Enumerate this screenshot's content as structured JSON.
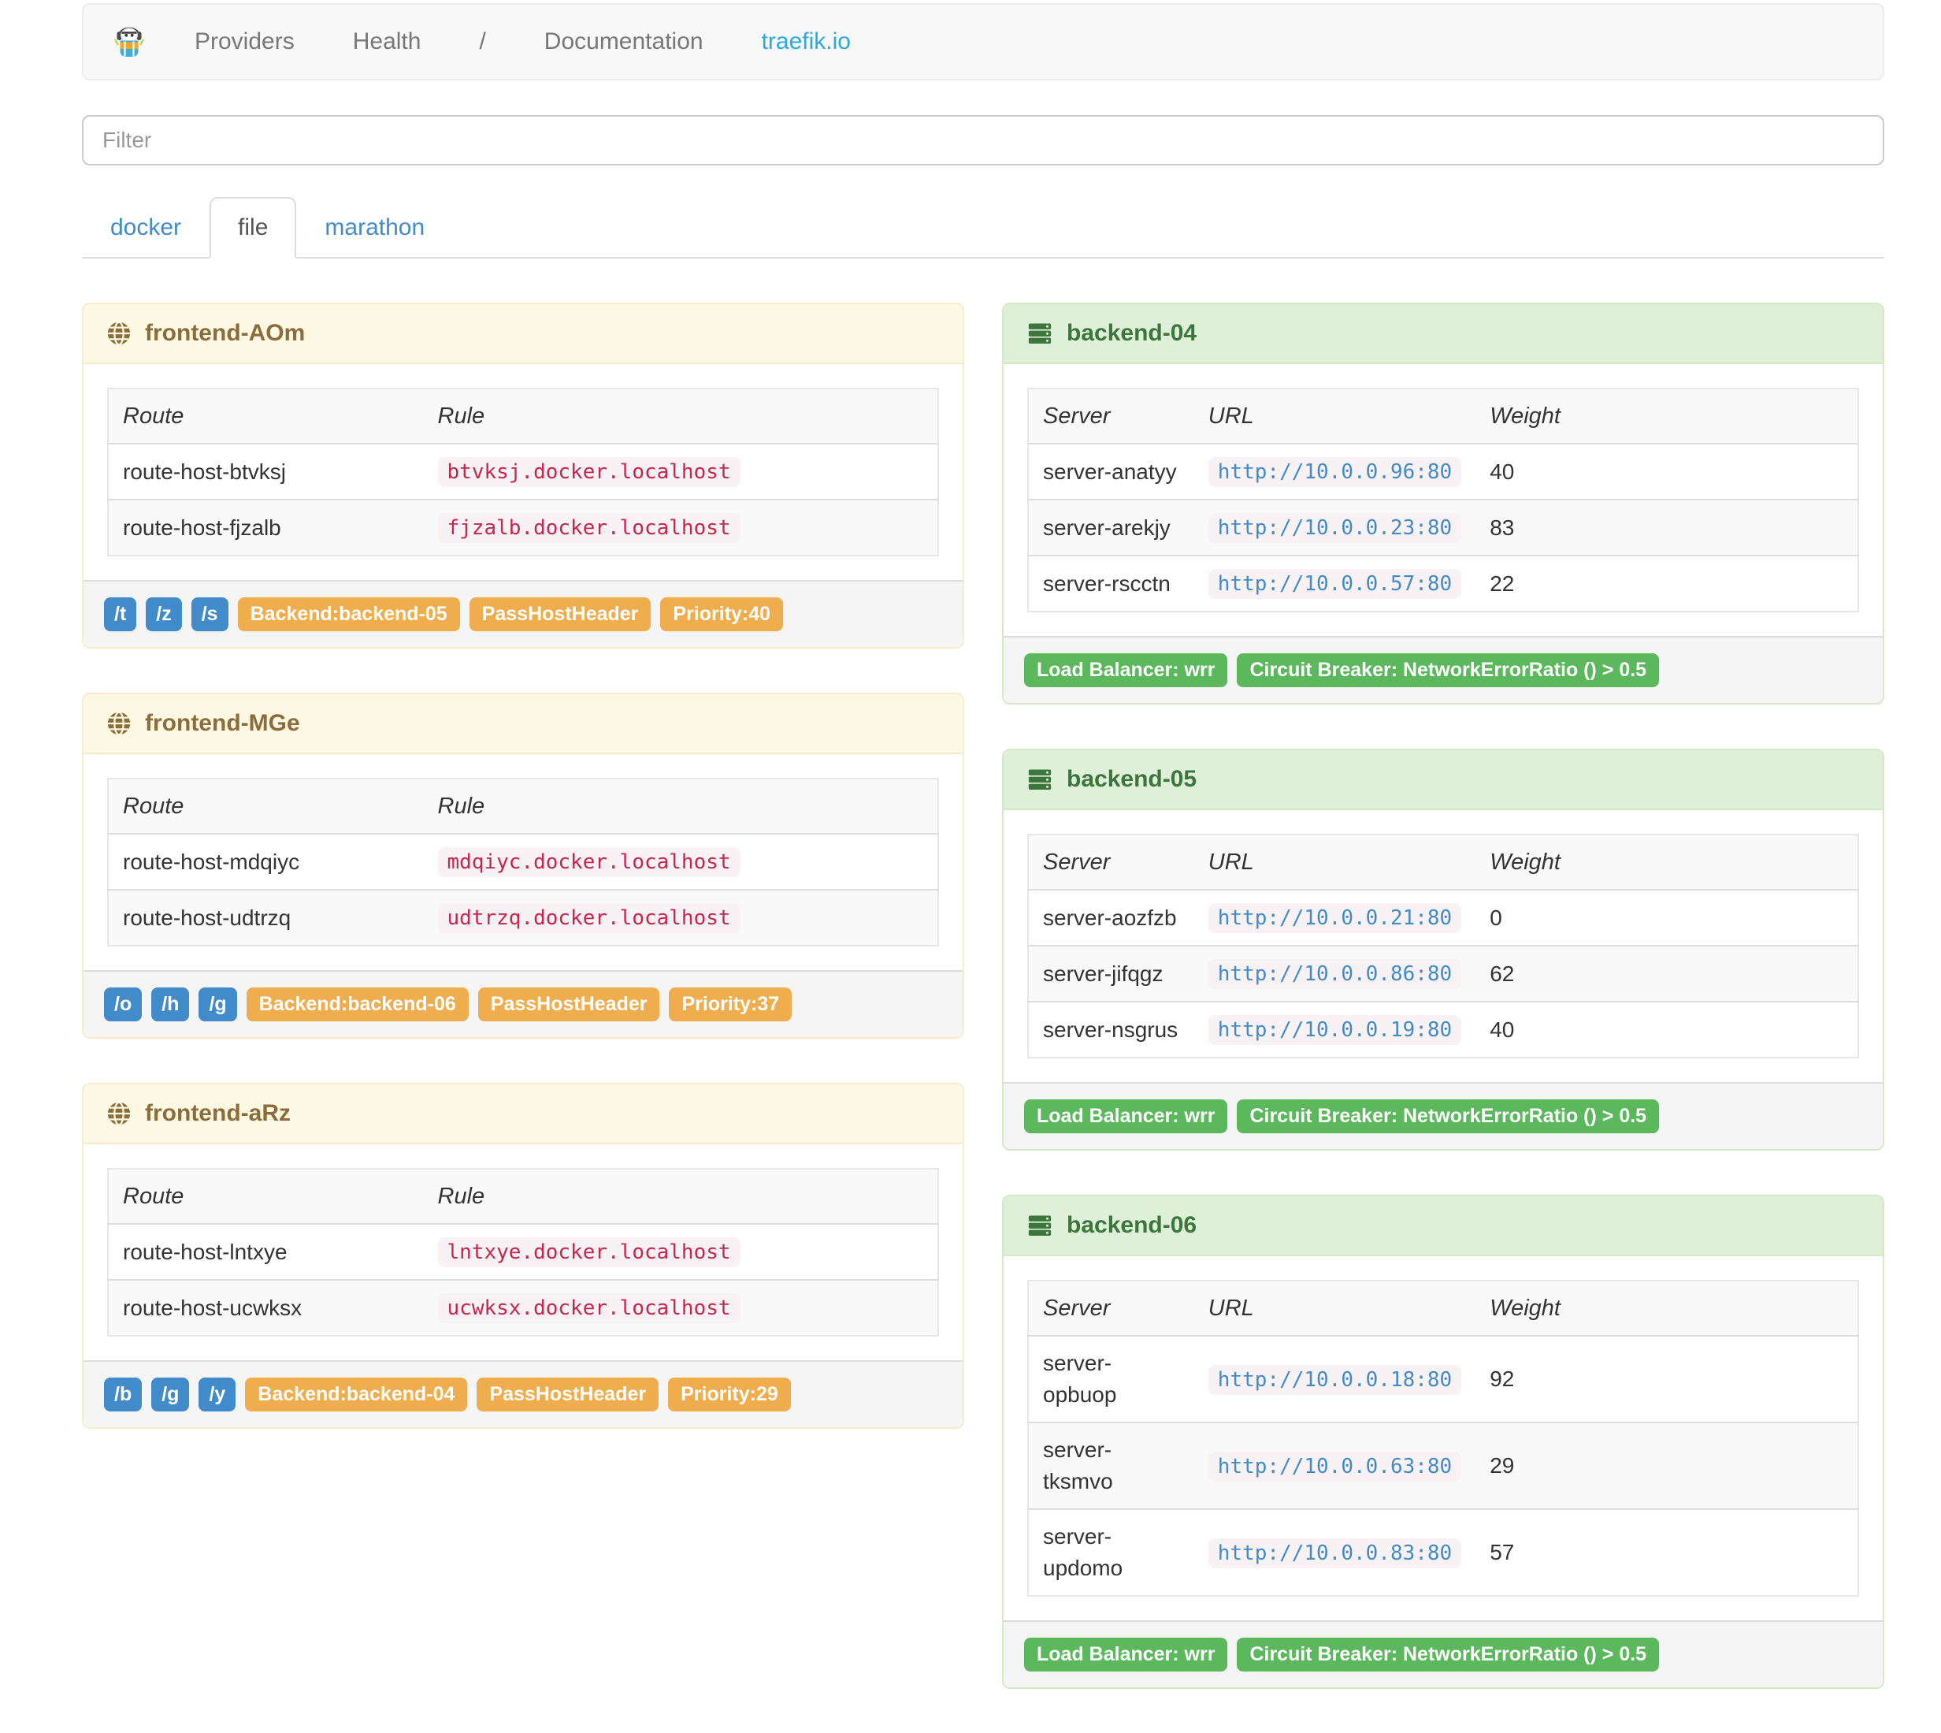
{
  "colors": {
    "blue_badge": "#428bca",
    "orange_badge": "#f0ad4e",
    "green_badge": "#5cb85c",
    "link": "#428bca",
    "brand_link": "#29abe2",
    "warning_bg": "#fcf8e3",
    "warning_border": "#faebcc",
    "warning_text": "#8a6d3b",
    "success_bg": "#dff0d8",
    "success_border": "#d6e9c6",
    "success_text": "#3c763d",
    "code_text": "#c7254e",
    "code_bg": "#f9f2f4",
    "url_text": "#428bca"
  },
  "navbar": {
    "brand_icon": "traefik-logo",
    "links": [
      "Providers",
      "Health"
    ],
    "right_links": [
      {
        "label": "/",
        "accent": false
      },
      {
        "label": "Documentation",
        "accent": false
      },
      {
        "label": "traefik.io",
        "accent": true
      }
    ]
  },
  "filter": {
    "placeholder": "Filter"
  },
  "tabs": [
    {
      "label": "docker",
      "active": false
    },
    {
      "label": "file",
      "active": true
    },
    {
      "label": "marathon",
      "active": false
    }
  ],
  "frontends": [
    {
      "title": "frontend-AOm",
      "icon": "globe-icon",
      "columns": [
        "Route",
        "Rule"
      ],
      "rows": [
        {
          "route": "route-host-btvksj",
          "rule": "btvksj.docker.localhost"
        },
        {
          "route": "route-host-fjzalb",
          "rule": "fjzalb.docker.localhost"
        }
      ],
      "route_badges": [
        "/t",
        "/z",
        "/s"
      ],
      "prop_badges": [
        "Backend:backend-05",
        "PassHostHeader",
        "Priority:40"
      ]
    },
    {
      "title": "frontend-MGe",
      "icon": "globe-icon",
      "columns": [
        "Route",
        "Rule"
      ],
      "rows": [
        {
          "route": "route-host-mdqiyc",
          "rule": "mdqiyc.docker.localhost"
        },
        {
          "route": "route-host-udtrzq",
          "rule": "udtrzq.docker.localhost"
        }
      ],
      "route_badges": [
        "/o",
        "/h",
        "/g"
      ],
      "prop_badges": [
        "Backend:backend-06",
        "PassHostHeader",
        "Priority:37"
      ]
    },
    {
      "title": "frontend-aRz",
      "icon": "globe-icon",
      "columns": [
        "Route",
        "Rule"
      ],
      "rows": [
        {
          "route": "route-host-lntxye",
          "rule": "lntxye.docker.localhost"
        },
        {
          "route": "route-host-ucwksx",
          "rule": "ucwksx.docker.localhost"
        }
      ],
      "route_badges": [
        "/b",
        "/g",
        "/y"
      ],
      "prop_badges": [
        "Backend:backend-04",
        "PassHostHeader",
        "Priority:29"
      ]
    }
  ],
  "backends": [
    {
      "title": "backend-04",
      "icon": "server-icon",
      "columns": [
        "Server",
        "URL",
        "Weight"
      ],
      "rows": [
        {
          "server": "server-anatyy",
          "url": "http://10.0.0.96:80",
          "weight": "40"
        },
        {
          "server": "server-arekjy",
          "url": "http://10.0.0.23:80",
          "weight": "83"
        },
        {
          "server": "server-rscctn",
          "url": "http://10.0.0.57:80",
          "weight": "22"
        }
      ],
      "badges": [
        "Load Balancer: wrr",
        "Circuit Breaker: NetworkErrorRatio () > 0.5"
      ]
    },
    {
      "title": "backend-05",
      "icon": "server-icon",
      "columns": [
        "Server",
        "URL",
        "Weight"
      ],
      "rows": [
        {
          "server": "server-aozfzb",
          "url": "http://10.0.0.21:80",
          "weight": "0"
        },
        {
          "server": "server-jifqgz",
          "url": "http://10.0.0.86:80",
          "weight": "62"
        },
        {
          "server": "server-nsgrus",
          "url": "http://10.0.0.19:80",
          "weight": "40"
        }
      ],
      "badges": [
        "Load Balancer: wrr",
        "Circuit Breaker: NetworkErrorRatio () > 0.5"
      ]
    },
    {
      "title": "backend-06",
      "icon": "server-icon",
      "columns": [
        "Server",
        "URL",
        "Weight"
      ],
      "rows": [
        {
          "server": "server-opbuop",
          "url": "http://10.0.0.18:80",
          "weight": "92"
        },
        {
          "server": "server-tksmvo",
          "url": "http://10.0.0.63:80",
          "weight": "29"
        },
        {
          "server": "server-updomo",
          "url": "http://10.0.0.83:80",
          "weight": "57"
        }
      ],
      "badges": [
        "Load Balancer: wrr",
        "Circuit Breaker: NetworkErrorRatio () > 0.5"
      ]
    }
  ]
}
